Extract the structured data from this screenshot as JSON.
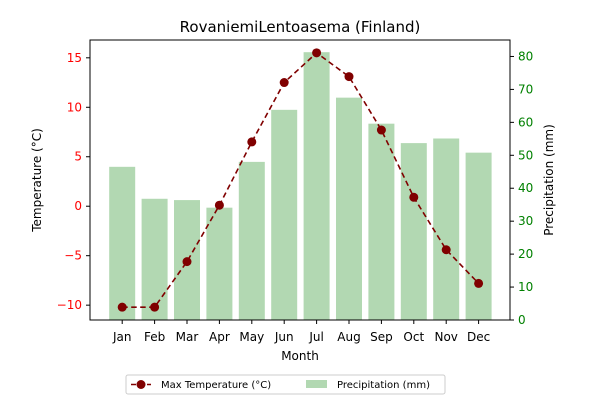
{
  "chart_data": {
    "type": "bar+line",
    "title": "RovaniemiLentoasema (Finland)",
    "xlabel": "Month",
    "ylabel_left": "Temperature (°C)",
    "ylabel_right": "Precipitation (mm)",
    "categories": [
      "Jan",
      "Feb",
      "Mar",
      "Apr",
      "May",
      "Jun",
      "Jul",
      "Aug",
      "Sep",
      "Oct",
      "Nov",
      "Dec"
    ],
    "series": [
      {
        "name": "Max Temperature (°C)",
        "type": "line",
        "axis": "left",
        "color": "#800000",
        "values": [
          -10.2,
          -10.2,
          -5.6,
          0.1,
          6.5,
          12.5,
          15.5,
          13.1,
          7.7,
          0.9,
          -4.4,
          -7.8
        ]
      },
      {
        "name": "Precipitation (mm)",
        "type": "bar",
        "axis": "right",
        "color": "#b2d8b2",
        "values": [
          46.5,
          36.8,
          36.4,
          34.1,
          48.0,
          63.8,
          81.3,
          67.5,
          59.6,
          53.7,
          55.1,
          50.8
        ]
      }
    ],
    "ylim_left": [
      -11.5,
      16.8
    ],
    "ylim_right": [
      0,
      85
    ],
    "yticks_left": [
      -10,
      -5,
      0,
      5,
      10,
      15
    ],
    "yticks_right": [
      0,
      10,
      20,
      30,
      40,
      50,
      60,
      70,
      80
    ],
    "left_axis_color": "#ff0000",
    "right_axis_color": "#008000",
    "legend_placement": "bottom-center",
    "grid": false
  }
}
